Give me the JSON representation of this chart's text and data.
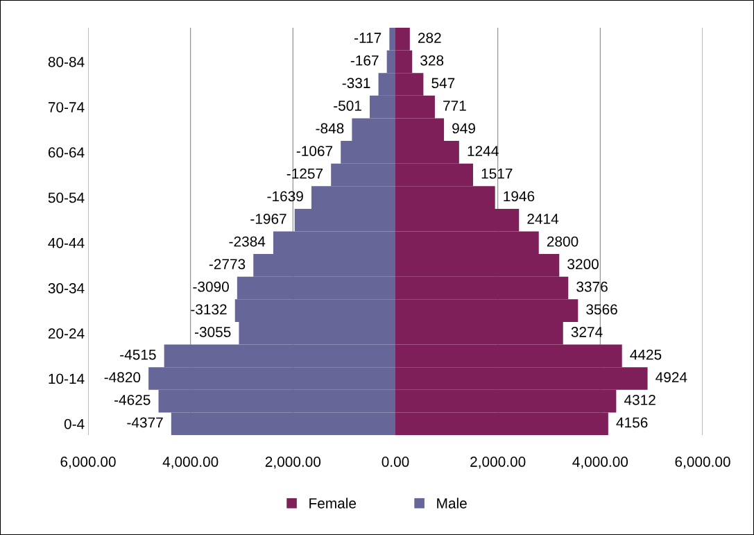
{
  "chart_data": {
    "type": "bar",
    "orientation": "horizontal",
    "categories": [
      null,
      "80-84",
      null,
      "70-74",
      null,
      "60-64",
      null,
      "50-54",
      null,
      "40-44",
      null,
      "30-34",
      null,
      "20-24",
      null,
      "10-14",
      null,
      "0-4"
    ],
    "series": [
      {
        "name": "Female",
        "color": "#7f1f5a",
        "values": [
          282,
          328,
          547,
          771,
          949,
          1244,
          1517,
          1946,
          2414,
          2800,
          3200,
          3376,
          3566,
          3274,
          4425,
          4924,
          4312,
          4156
        ]
      },
      {
        "name": "Male",
        "color": "#666699",
        "values": [
          -117,
          -167,
          -331,
          -501,
          -848,
          -1067,
          -1257,
          -1639,
          -1967,
          -2384,
          -2773,
          -3090,
          -3132,
          -3055,
          -4515,
          -4820,
          -4625,
          -4377
        ]
      }
    ],
    "xlim": [
      -6000,
      6000
    ],
    "xticks": [
      {
        "value": -6000,
        "label": "6,000.00"
      },
      {
        "value": -4000,
        "label": "4,000.00"
      },
      {
        "value": -2000,
        "label": "2,000.00"
      },
      {
        "value": 0,
        "label": "0.00"
      },
      {
        "value": 2000,
        "label": "2,000.00"
      },
      {
        "value": 4000,
        "label": "4,000.00"
      },
      {
        "value": 6000,
        "label": "6,000.00"
      }
    ],
    "stacked": true,
    "grid": "x",
    "legend": "bottom",
    "data_labels": true
  }
}
